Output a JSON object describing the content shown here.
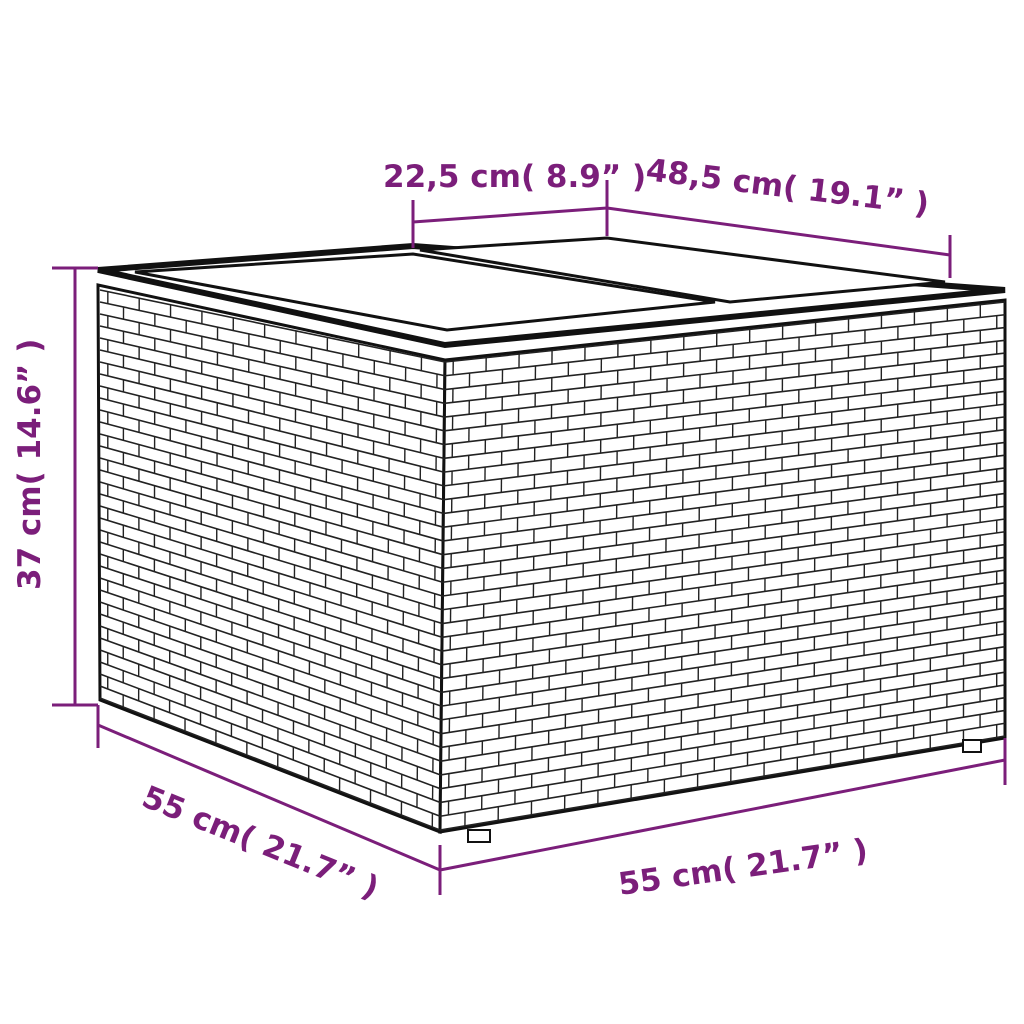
{
  "colors": {
    "dimension": "#7b1e7a",
    "product_outline": "#1a1a1a"
  },
  "dimensions": {
    "lid_section_depth": "22,5 cm( 8.9”  )",
    "lid_width": "48,5 cm( 19.1”  )",
    "height": "37 cm( 14.6”  )",
    "depth": "55 cm( 21.7”  )",
    "width": "55 cm( 21.7”  )"
  }
}
